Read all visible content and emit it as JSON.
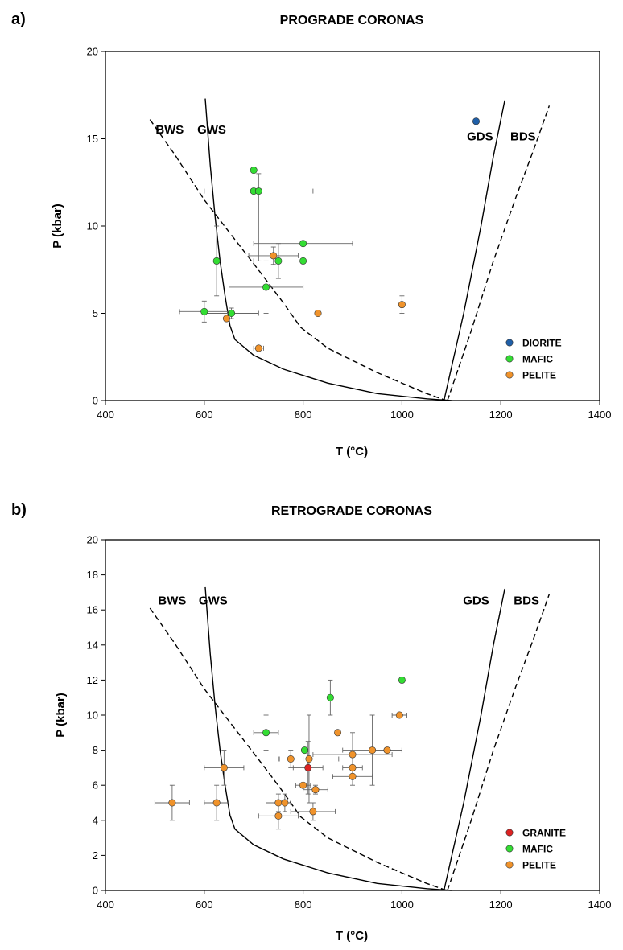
{
  "chart_data": [
    {
      "type": "scatter",
      "panel_label": "a)",
      "title": "PROGRADE CORONAS",
      "xlabel": "T (°C)",
      "ylabel": "P (kbar)",
      "xlim": [
        400,
        1400
      ],
      "ylim": [
        0,
        20
      ],
      "xticks": [
        400,
        600,
        800,
        1000,
        1200,
        1400
      ],
      "yticks": [
        0,
        5,
        10,
        15,
        20
      ],
      "grid": false,
      "legend_position": "bottom-right",
      "curves": [
        {
          "name": "BWS",
          "style": "dashed",
          "label_at": [
            530,
            15.3
          ],
          "points": [
            [
              490,
              16.1
            ],
            [
              540,
              14.1
            ],
            [
              600,
              11.5
            ],
            [
              660,
              9.3
            ],
            [
              720,
              7.1
            ],
            [
              760,
              5.6
            ],
            [
              795,
              4.2
            ],
            [
              850,
              3.0
            ],
            [
              950,
              1.6
            ],
            [
              1050,
              0.4
            ],
            [
              1090,
              0.0
            ]
          ]
        },
        {
          "name": "GWS",
          "style": "solid",
          "label_at": [
            615,
            15.3
          ],
          "points": [
            [
              602,
              17.3
            ],
            [
              612,
              13.5
            ],
            [
              622,
              10.5
            ],
            [
              632,
              8.0
            ],
            [
              642,
              6.0
            ],
            [
              652,
              4.3
            ],
            [
              662,
              3.5
            ],
            [
              700,
              2.6
            ],
            [
              760,
              1.8
            ],
            [
              850,
              1.0
            ],
            [
              950,
              0.4
            ],
            [
              1050,
              0.1
            ],
            [
              1100,
              0.0
            ]
          ]
        },
        {
          "name": "GDS",
          "style": "solid",
          "label_at": [
            1158,
            14.9
          ],
          "points": [
            [
              1085,
              0.0
            ],
            [
              1125,
              5.0
            ],
            [
              1160,
              10.0
            ],
            [
              1185,
              14.0
            ],
            [
              1208,
              17.2
            ]
          ]
        },
        {
          "name": "BDS",
          "style": "dashed",
          "label_at": [
            1245,
            14.9
          ],
          "points": [
            [
              1092,
              0.0
            ],
            [
              1140,
              4.0
            ],
            [
              1185,
              8.0
            ],
            [
              1230,
              11.6
            ],
            [
              1268,
              14.5
            ],
            [
              1298,
              16.9
            ]
          ]
        }
      ],
      "series": [
        {
          "name": "DIORITE",
          "color": "#1f5fa8",
          "points": [
            {
              "x": 1150,
              "y": 16.0
            }
          ]
        },
        {
          "name": "MAFIC",
          "color": "#33dd33",
          "points": [
            {
              "x": 700,
              "y": 13.2
            },
            {
              "x": 700,
              "y": 12.0
            },
            {
              "x": 710,
              "y": 12.0,
              "xerr": [
                110,
                110
              ],
              "yerr": [
                4.0,
                1.0
              ]
            },
            {
              "x": 800,
              "y": 9.0,
              "xerr": [
                100,
                100
              ]
            },
            {
              "x": 625,
              "y": 8.0,
              "yerr": [
                2.0,
                2.0
              ]
            },
            {
              "x": 750,
              "y": 8.0,
              "xerr": [
                50,
                50
              ],
              "yerr": [
                1.0,
                1.0
              ]
            },
            {
              "x": 800,
              "y": 8.0,
              "xerr": [
                50,
                0
              ]
            },
            {
              "x": 725,
              "y": 6.5,
              "xerr": [
                75,
                75
              ],
              "yerr": [
                1.5,
                1.5
              ]
            },
            {
              "x": 600,
              "y": 5.1,
              "xerr": [
                50,
                50
              ],
              "yerr": [
                0.6,
                0.6
              ]
            },
            {
              "x": 655,
              "y": 5.0,
              "xerr": [
                55,
                55
              ],
              "yerr": [
                0.3,
                0.3
              ]
            }
          ]
        },
        {
          "name": "PELITE",
          "color": "#f0932b",
          "points": [
            {
              "x": 740,
              "y": 8.3,
              "xerr": [
                50,
                50
              ],
              "yerr": [
                0.5,
                0.5
              ]
            },
            {
              "x": 830,
              "y": 5.0
            },
            {
              "x": 1000,
              "y": 5.5,
              "yerr": [
                0.5,
                0.5
              ]
            },
            {
              "x": 645,
              "y": 4.7
            },
            {
              "x": 710,
              "y": 3.0,
              "xerr": [
                10,
                10
              ]
            }
          ]
        }
      ]
    },
    {
      "type": "scatter",
      "panel_label": "b)",
      "title": "RETROGRADE CORONAS",
      "xlabel": "T (°C)",
      "ylabel": "P (kbar)",
      "xlim": [
        400,
        1400
      ],
      "ylim": [
        0,
        20
      ],
      "xticks": [
        400,
        600,
        800,
        1000,
        1200,
        1400
      ],
      "yticks": [
        0,
        2,
        4,
        6,
        8,
        10,
        12,
        14,
        16,
        18,
        20
      ],
      "grid": false,
      "legend_position": "bottom-right",
      "curves": [
        {
          "name": "BWS",
          "style": "dashed",
          "label_at": [
            535,
            16.3
          ],
          "points": [
            [
              490,
              16.1
            ],
            [
              540,
              14.1
            ],
            [
              600,
              11.5
            ],
            [
              660,
              9.3
            ],
            [
              720,
              7.1
            ],
            [
              760,
              5.6
            ],
            [
              795,
              4.2
            ],
            [
              850,
              3.0
            ],
            [
              950,
              1.6
            ],
            [
              1050,
              0.4
            ],
            [
              1090,
              0.0
            ]
          ]
        },
        {
          "name": "GWS",
          "style": "solid",
          "label_at": [
            618,
            16.3
          ],
          "points": [
            [
              602,
              17.3
            ],
            [
              612,
              13.5
            ],
            [
              622,
              10.5
            ],
            [
              632,
              8.0
            ],
            [
              642,
              6.0
            ],
            [
              652,
              4.3
            ],
            [
              662,
              3.5
            ],
            [
              700,
              2.6
            ],
            [
              760,
              1.8
            ],
            [
              850,
              1.0
            ],
            [
              950,
              0.4
            ],
            [
              1050,
              0.1
            ],
            [
              1100,
              0.0
            ]
          ]
        },
        {
          "name": "GDS",
          "style": "solid",
          "label_at": [
            1150,
            16.3
          ],
          "points": [
            [
              1085,
              0.0
            ],
            [
              1125,
              5.0
            ],
            [
              1160,
              10.0
            ],
            [
              1185,
              14.0
            ],
            [
              1208,
              17.2
            ]
          ]
        },
        {
          "name": "BDS",
          "style": "dashed",
          "label_at": [
            1252,
            16.3
          ],
          "points": [
            [
              1092,
              0.0
            ],
            [
              1140,
              4.0
            ],
            [
              1185,
              8.0
            ],
            [
              1230,
              11.6
            ],
            [
              1268,
              14.5
            ],
            [
              1298,
              16.9
            ]
          ]
        }
      ],
      "series": [
        {
          "name": "GRANITE",
          "color": "#dd2222",
          "points": [
            {
              "x": 810,
              "y": 7.0,
              "xerr": [
                30,
                30
              ],
              "yerr": [
                1.5,
                1.5
              ]
            }
          ]
        },
        {
          "name": "MAFIC",
          "color": "#33dd33",
          "points": [
            {
              "x": 1000,
              "y": 12.0
            },
            {
              "x": 855,
              "y": 11.0,
              "yerr": [
                1.0,
                1.0
              ]
            },
            {
              "x": 725,
              "y": 9.0,
              "xerr": [
                25,
                25
              ],
              "yerr": [
                1.0,
                1.0
              ]
            },
            {
              "x": 803,
              "y": 8.0
            }
          ]
        },
        {
          "name": "PELITE",
          "color": "#f0932b",
          "points": [
            {
              "x": 995,
              "y": 10.0,
              "xerr": [
                15,
                15
              ]
            },
            {
              "x": 870,
              "y": 9.0
            },
            {
              "x": 940,
              "y": 8.0,
              "xerr": [
                60,
                60
              ],
              "yerr": [
                2.0,
                2.0
              ]
            },
            {
              "x": 970,
              "y": 8.0,
              "xerr": [
                30,
                30
              ]
            },
            {
              "x": 900,
              "y": 7.75,
              "xerr": [
                80,
                80
              ],
              "yerr": [
                1.25,
                1.25
              ]
            },
            {
              "x": 775,
              "y": 7.5,
              "xerr": [
                25,
                25
              ],
              "yerr": [
                0.5,
                0.5
              ]
            },
            {
              "x": 812,
              "y": 7.5,
              "xerr": [
                60,
                60
              ],
              "yerr": [
                2.5,
                2.5
              ]
            },
            {
              "x": 640,
              "y": 7.0,
              "xerr": [
                40,
                40
              ],
              "yerr": [
                1.0,
                1.0
              ]
            },
            {
              "x": 900,
              "y": 7.0,
              "xerr": [
                20,
                20
              ]
            },
            {
              "x": 900,
              "y": 6.5,
              "xerr": [
                40,
                40
              ],
              "yerr": [
                0.5,
                0.5
              ]
            },
            {
              "x": 800,
              "y": 6.0,
              "xerr": [
                15,
                15
              ]
            },
            {
              "x": 825,
              "y": 5.75,
              "xerr": [
                25,
                25
              ],
              "yerr": [
                0.25,
                0.25
              ]
            },
            {
              "x": 535,
              "y": 5.0,
              "xerr": [
                35,
                35
              ],
              "yerr": [
                1.0,
                1.0
              ]
            },
            {
              "x": 625,
              "y": 5.0,
              "xerr": [
                25,
                25
              ],
              "yerr": [
                1.0,
                1.0
              ]
            },
            {
              "x": 750,
              "y": 5.0,
              "xerr": [
                25,
                25
              ],
              "yerr": [
                0.5,
                0.5
              ]
            },
            {
              "x": 763,
              "y": 5.0,
              "xerr": [
                12,
                12
              ],
              "yerr": [
                0.5,
                0.5
              ]
            },
            {
              "x": 820,
              "y": 4.5,
              "xerr": [
                45,
                45
              ],
              "yerr": [
                0.5,
                0.5
              ]
            },
            {
              "x": 750,
              "y": 4.25,
              "xerr": [
                40,
                40
              ],
              "yerr": [
                0.75,
                0.75
              ]
            }
          ]
        }
      ]
    }
  ]
}
